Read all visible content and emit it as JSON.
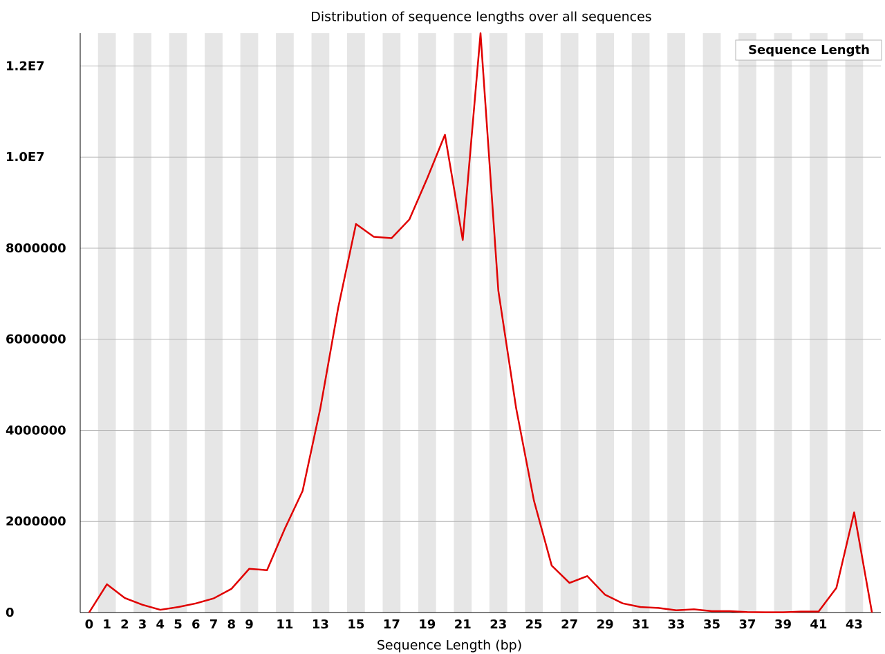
{
  "chart_data": {
    "type": "line",
    "title": "Distribution of sequence lengths over all sequences",
    "x_label": "Sequence Length (bp)",
    "categories": [
      "0",
      "1",
      "2",
      "3",
      "4",
      "5",
      "6",
      "7",
      "8",
      "9",
      null,
      "11",
      null,
      "13",
      null,
      "15",
      null,
      "17",
      null,
      "19",
      null,
      "21",
      null,
      "23",
      null,
      "25",
      null,
      "27",
      null,
      "29",
      null,
      "31",
      null,
      "33",
      null,
      "35",
      null,
      "37",
      null,
      "39",
      null,
      "41",
      null,
      "43",
      null
    ],
    "series": [
      {
        "name": "Sequence Length",
        "color": "#e00000",
        "values": [
          0,
          620000,
          320000,
          170000,
          60000,
          120000,
          200000,
          310000,
          520000,
          960000,
          930000,
          1840000,
          2670000,
          4490000,
          6690000,
          8530000,
          8250000,
          8220000,
          8630000,
          9530000,
          10490000,
          8180000,
          12720000,
          7070000,
          4490000,
          2460000,
          1030000,
          650000,
          800000,
          390000,
          200000,
          120000,
          100000,
          50000,
          70000,
          30000,
          30000,
          10000,
          5000,
          5000,
          20000,
          20000,
          540000,
          2200000,
          0
        ]
      }
    ],
    "ylim": [
      0,
      12720000
    ],
    "yticks": [
      0,
      2000000,
      4000000,
      6000000,
      8000000,
      {
        "value": 10000000,
        "label": "1.0E7"
      },
      {
        "value": 12000000,
        "label": "1.2E7"
      }
    ],
    "grid": true,
    "legend": "top-right",
    "stripes": true
  }
}
